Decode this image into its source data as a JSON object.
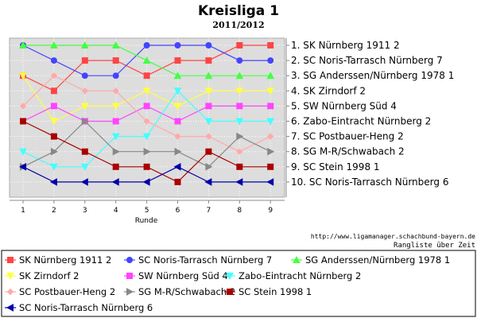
{
  "chart_data": {
    "type": "line",
    "title": "Kreisliga 1",
    "subtitle": "2011/2012",
    "xlabel": "Runde",
    "x": [
      1,
      2,
      3,
      4,
      5,
      6,
      7,
      8,
      9
    ],
    "y_reversed": true,
    "ylim": [
      1,
      10
    ],
    "grid": true,
    "legend_position": "bottom",
    "final_ranking": [
      "1. SK Nürnberg 1911 2",
      "2. SC Noris-Tarrasch Nürnberg 7",
      "3. SG Anderssen/Nürnberg 1978 1",
      "4. SK Zirndorf 2",
      "5. SW Nürnberg Süd 4",
      "6. Zabo-Eintracht Nürnberg 2",
      "7. SC Postbauer-Heng 2",
      "8. SG M-R/Schwabach 2",
      "9. SC Stein 1998 1",
      "10. SC Noris-Tarrasch Nürnberg 6"
    ],
    "source_url": "http://www.ligamanager.schachbund-bayern.de",
    "footer_caption": "Rangliste über Zeit",
    "series": [
      {
        "name": "SK Nürnberg 1911 2",
        "color": "#ff4444",
        "marker": "square",
        "values": [
          3,
          4,
          2,
          2,
          3,
          2,
          2,
          1,
          1
        ]
      },
      {
        "name": "SC Noris-Tarrasch Nürnberg 7",
        "color": "#4444ff",
        "marker": "circle",
        "values": [
          1,
          2,
          3,
          3,
          1,
          1,
          1,
          2,
          2
        ]
      },
      {
        "name": "SG Anderssen/Nürnberg 1978 1",
        "color": "#44ff44",
        "marker": "triangle-up",
        "values": [
          1,
          1,
          1,
          1,
          2,
          3,
          3,
          3,
          3
        ]
      },
      {
        "name": "SK Zirndorf 2",
        "color": "#ffff44",
        "marker": "triangle-down",
        "values": [
          3,
          6,
          5,
          5,
          4,
          5,
          4,
          4,
          4
        ]
      },
      {
        "name": "SW Nürnberg Süd 4",
        "color": "#ff44ff",
        "marker": "square",
        "values": [
          6,
          5,
          6,
          6,
          5,
          6,
          5,
          5,
          5
        ]
      },
      {
        "name": "Zabo-Eintracht Nürnberg 2",
        "color": "#44ffff",
        "marker": "triangle-down",
        "values": [
          8,
          9,
          9,
          7,
          7,
          4,
          6,
          6,
          6
        ]
      },
      {
        "name": "SC Postbauer-Heng 2",
        "color": "#ffaaaa",
        "marker": "diamond",
        "values": [
          5,
          3,
          4,
          4,
          6,
          7,
          7,
          8,
          7
        ]
      },
      {
        "name": "SG M-R/Schwabach 2",
        "color": "#888888",
        "marker": "triangle-right",
        "values": [
          9,
          8,
          6,
          8,
          8,
          8,
          9,
          7,
          8
        ]
      },
      {
        "name": "SC Stein 1998 1",
        "color": "#aa0000",
        "marker": "square",
        "values": [
          6,
          7,
          8,
          9,
          9,
          10,
          8,
          9,
          9
        ]
      },
      {
        "name": "SC Noris-Tarrasch Nürnberg 6",
        "color": "#0000aa",
        "marker": "triangle-left",
        "values": [
          9,
          10,
          10,
          10,
          10,
          9,
          10,
          10,
          10
        ]
      }
    ]
  }
}
